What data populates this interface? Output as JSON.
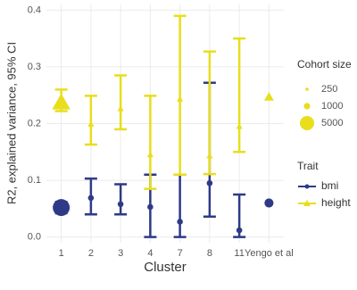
{
  "chart_data": {
    "type": "errorbar",
    "y_label": "R2, explained variance, 95% CI",
    "x_label": "Cluster",
    "categories": [
      "1",
      "2",
      "3",
      "4",
      "7",
      "8",
      "11",
      "Yengo et al"
    ],
    "ylim": [
      -0.01,
      0.41
    ],
    "yticks": [
      {
        "value": 0,
        "label": "0.0"
      },
      0.1,
      0.2,
      0.3,
      0.4
    ],
    "grid": true,
    "size_legend": {
      "title": "Cohort size",
      "values": [
        250,
        1000,
        5000
      ],
      "color": "#e8de1c"
    },
    "trait_legend_title": "Trait",
    "series": [
      {
        "name": "bmi",
        "color": "#2e3a87",
        "marker": "circle",
        "values": [
          0.052,
          0.069,
          0.058,
          0.053,
          0.027,
          0.095,
          0.012,
          0.06
        ],
        "lower": [
          0.042,
          0.04,
          0.04,
          0.0,
          0.0,
          0.036,
          0.0,
          null
        ],
        "upper": [
          0.062,
          0.103,
          0.093,
          0.11,
          0.11,
          0.272,
          0.075,
          null
        ],
        "sizes": [
          5000,
          250,
          250,
          250,
          250,
          250,
          250,
          1000
        ]
      },
      {
        "name": "height",
        "color": "#e8de1c",
        "marker": "triangle",
        "values": [
          0.237,
          0.199,
          0.226,
          0.145,
          0.243,
          0.143,
          0.195,
          0.247
        ],
        "lower": [
          0.222,
          0.163,
          0.19,
          0.085,
          0.11,
          0.111,
          0.15,
          null
        ],
        "upper": [
          0.26,
          0.249,
          0.285,
          0.249,
          0.39,
          0.327,
          0.35,
          null
        ],
        "sizes": [
          5000,
          250,
          250,
          250,
          250,
          250,
          250,
          1000
        ]
      }
    ]
  }
}
